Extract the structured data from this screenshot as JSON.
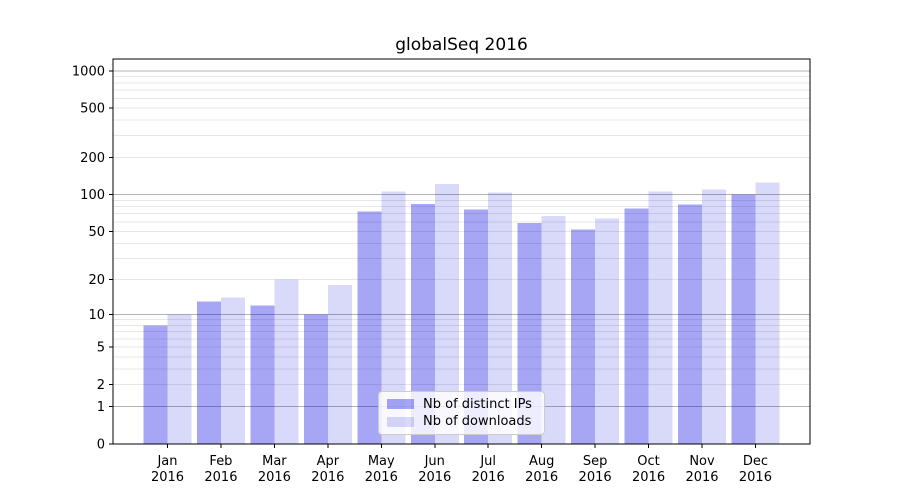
{
  "chart_data": {
    "type": "bar",
    "title": "globalSeq 2016",
    "xlabel": "",
    "ylabel": "",
    "categories": [
      "Jan 2016",
      "Feb 2016",
      "Mar 2016",
      "Apr 2016",
      "May 2016",
      "Jun 2016",
      "Jul 2016",
      "Aug 2016",
      "Sep 2016",
      "Oct 2016",
      "Nov 2016",
      "Dec 2016"
    ],
    "series": [
      {
        "name": "Nb of distinct IPs",
        "color": "rgba(0,0,224,0.35)",
        "values": [
          8,
          13,
          12,
          10,
          73,
          84,
          76,
          59,
          52,
          77,
          83,
          100
        ]
      },
      {
        "name": "Nb of downloads",
        "color": "rgba(0,0,224,0.15)",
        "values": [
          10,
          14,
          20,
          18,
          106,
          122,
          104,
          67,
          64,
          106,
          110,
          126
        ]
      }
    ],
    "yscale": "log1p",
    "ylim": [
      0,
      1252
    ],
    "yticks": [
      0,
      1,
      2,
      5,
      10,
      20,
      50,
      100,
      200,
      500,
      1000
    ],
    "major_gridlines": [
      1,
      10,
      100,
      1000
    ],
    "minor_gridlines": [
      2,
      3,
      4,
      5,
      6,
      7,
      8,
      9,
      20,
      30,
      40,
      50,
      60,
      70,
      80,
      90,
      200,
      300,
      400,
      500,
      600,
      700,
      800,
      900
    ],
    "grid": true,
    "legend_position": "lower center"
  },
  "colors": {
    "background": "#ffffff",
    "axis": "#000000",
    "major_grid": "#b3b3b3",
    "minor_grid": "#e7e7e7",
    "legend_border": "#cccccc"
  }
}
